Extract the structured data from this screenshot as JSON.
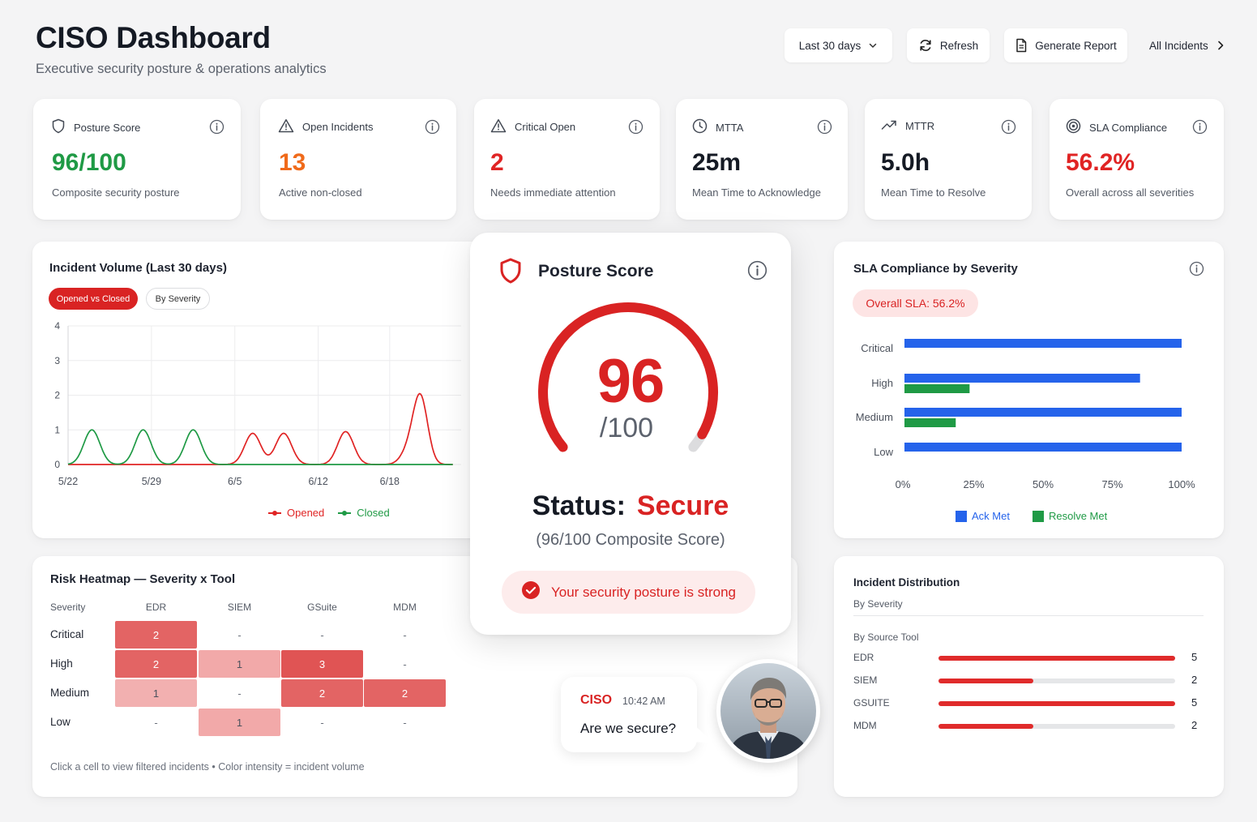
{
  "header": {
    "title": "CISO Dashboard",
    "subtitle": "Executive security posture & operations analytics",
    "date_range": "Last 30 days",
    "refresh_label": "Refresh",
    "report_label": "Generate Report",
    "all_incidents_label": "All Incidents"
  },
  "kpis": [
    {
      "label": "Posture Score",
      "value": "96/100",
      "desc": "Composite security posture",
      "icon": "shield-icon",
      "color": "#1f9a45"
    },
    {
      "label": "Open Incidents",
      "value": "13",
      "desc": "Active non-closed",
      "icon": "warning-icon",
      "color": "#f06a1a"
    },
    {
      "label": "Critical Open",
      "value": "2",
      "desc": "Needs immediate attention",
      "icon": "warning-icon",
      "color": "#e02424"
    },
    {
      "label": "MTTA",
      "value": "25m",
      "desc": "Mean Time to Acknowledge",
      "icon": "clock-icon",
      "color": "#151a24"
    },
    {
      "label": "MTTR",
      "value": "5.0h",
      "desc": "Mean Time to Resolve",
      "icon": "trend-up-icon",
      "color": "#151a24"
    },
    {
      "label": "SLA Compliance",
      "value": "56.2%",
      "desc": "Overall across all severities",
      "icon": "target-icon",
      "color": "#e02424"
    }
  ],
  "incident_volume": {
    "title": "Incident Volume (Last 30 days)",
    "tabs": [
      "Opened vs Closed",
      "By Severity"
    ],
    "active_tab": 0
  },
  "posture_card": {
    "title": "Posture Score",
    "score": "96",
    "max": "/100",
    "score_value": 96,
    "status_label": "Status:",
    "status_value": "Secure",
    "composite": "(96/100 Composite Score)",
    "message": "Your security posture is strong"
  },
  "sla": {
    "title": "SLA Compliance by Severity",
    "overall": "Overall SLA: 56.2%"
  },
  "heatmap": {
    "title": "Risk Heatmap — Severity x Tool",
    "row_header": "Severity",
    "columns": [
      "EDR",
      "SIEM",
      "GSuite",
      "MDM"
    ],
    "rows": [
      {
        "label": "Critical",
        "cells": [
          "2",
          "-",
          "-",
          "-"
        ]
      },
      {
        "label": "High",
        "cells": [
          "2",
          "1",
          "3",
          "-"
        ]
      },
      {
        "label": "Medium",
        "cells": [
          "1",
          "-",
          "2",
          "2"
        ]
      },
      {
        "label": "Low",
        "cells": [
          "-",
          "1",
          "-",
          "-"
        ]
      }
    ],
    "note": "Click a cell to view filtered incidents • Color intensity = incident volume"
  },
  "chat": {
    "sender": "CISO",
    "time": "10:42 AM",
    "message": "Are we secure?"
  },
  "distribution": {
    "title": "Incident Distribution",
    "subtitle": "By Severity",
    "section": "By Source Tool",
    "max": 5,
    "items": [
      {
        "label": "EDR",
        "value": 5
      },
      {
        "label": "SIEM",
        "value": 2
      },
      {
        "label": "GSUITE",
        "value": 5
      },
      {
        "label": "MDM",
        "value": 2
      }
    ]
  },
  "chart_data": [
    {
      "type": "line",
      "title": "Incident Volume (Last 30 days)",
      "x_ticks": [
        "5/22",
        "5/29",
        "6/5",
        "6/12",
        "6/18"
      ],
      "x_days": [
        0,
        7,
        14,
        21,
        27
      ],
      "ylim": [
        0,
        4
      ],
      "y_ticks": [
        0,
        1,
        2,
        3,
        4
      ],
      "grid": true,
      "legend_position": "bottom",
      "series": [
        {
          "name": "Opened",
          "color": "#e02424",
          "peaks": [
            {
              "day": 15.5,
              "value": 0.9
            },
            {
              "day": 18.1,
              "value": 0.9
            },
            {
              "day": 23.3,
              "value": 0.95
            },
            {
              "day": 29.6,
              "value": 1.85
            },
            {
              "day": 28.7,
              "value": 0.45
            }
          ]
        },
        {
          "name": "Closed",
          "color": "#1f9a45",
          "peaks": [
            {
              "day": 2.0,
              "value": 1.0
            },
            {
              "day": 6.3,
              "value": 1.0
            },
            {
              "day": 10.5,
              "value": 1.0
            }
          ]
        }
      ],
      "x_max": 33
    },
    {
      "type": "bar",
      "orientation": "horizontal",
      "title": "SLA Compliance by Severity",
      "categories": [
        "Critical",
        "High",
        "Medium",
        "Low"
      ],
      "x_ticks": [
        "0%",
        "25%",
        "50%",
        "75%",
        "100%"
      ],
      "xlim": [
        0,
        100
      ],
      "legend_position": "bottom",
      "series": [
        {
          "name": "Ack Met",
          "color": "#2563eb",
          "values": [
            100,
            85,
            100,
            100
          ]
        },
        {
          "name": "Resolve Met",
          "color": "#1f9a45",
          "values": [
            0,
            23.5,
            18.5,
            0
          ]
        }
      ]
    }
  ]
}
